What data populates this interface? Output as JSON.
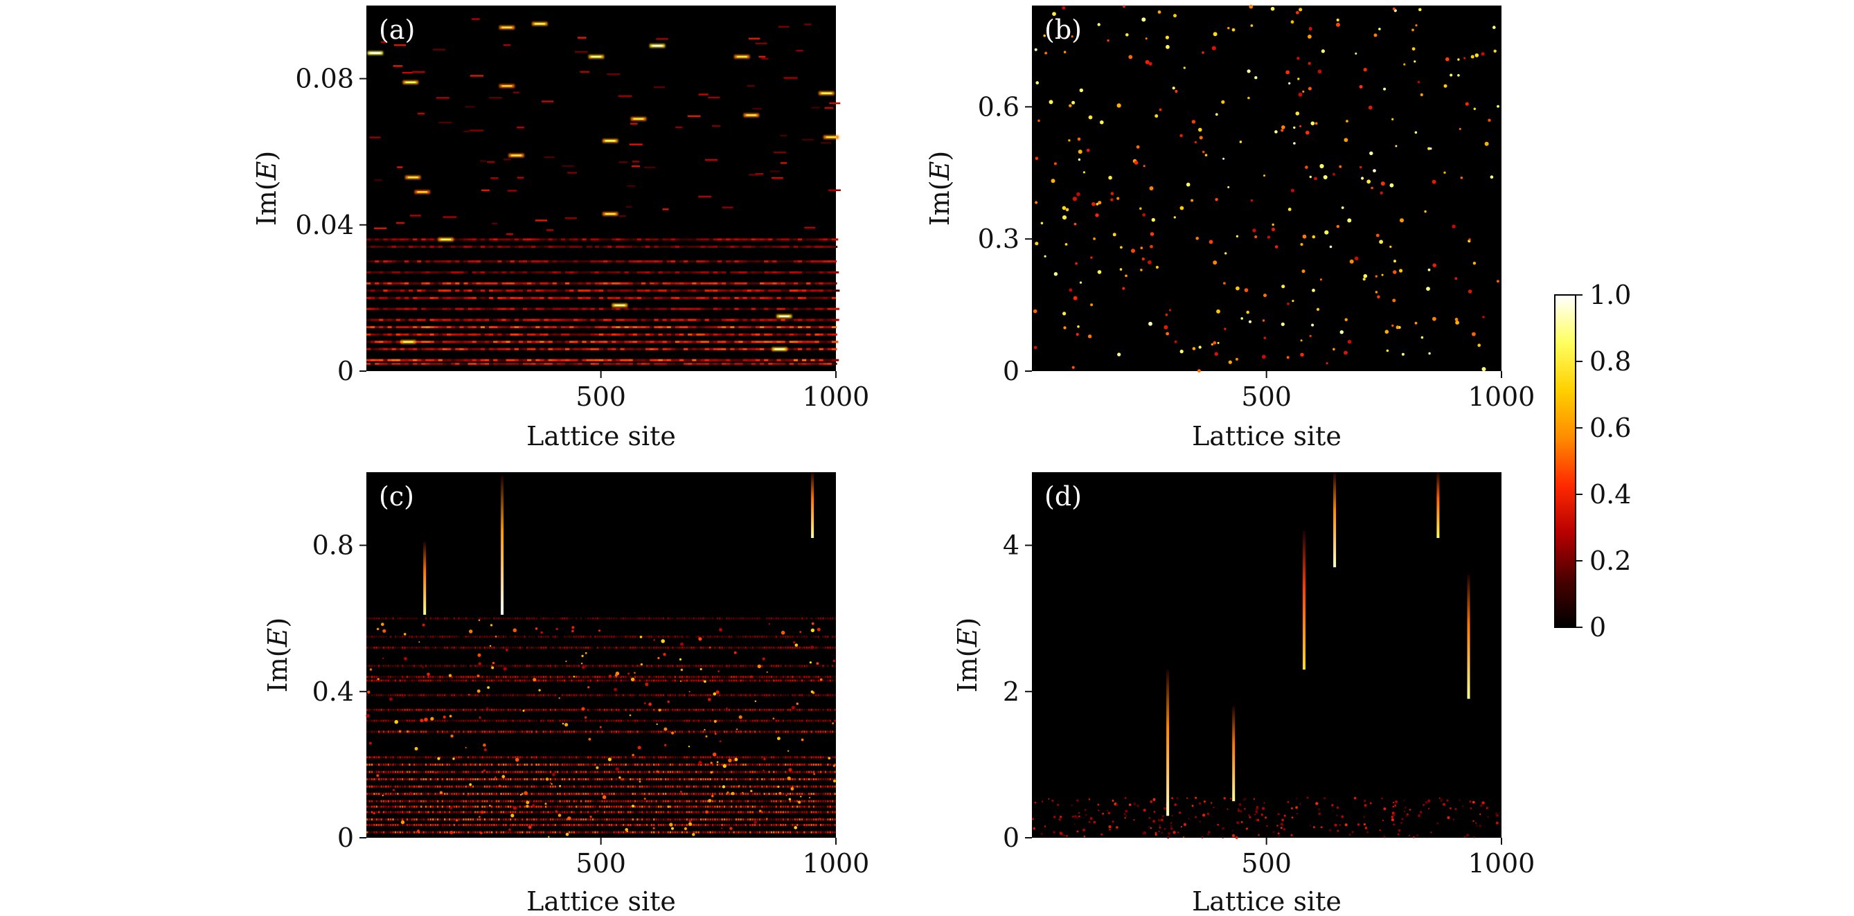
{
  "colors": {
    "background": "#000000",
    "colormap": [
      "#000000",
      "#4a0000",
      "#b80000",
      "#ff2a00",
      "#ff8c00",
      "#ffd000",
      "#ffff60",
      "#ffffff"
    ]
  },
  "chart_data": [
    {
      "type": "heatmap",
      "panel_label": "(a)",
      "xlabel": "Lattice site",
      "ylabel": "Im(E)",
      "xlim": [
        1,
        1000
      ],
      "ylim": [
        0,
        0.1
      ],
      "xticks": [
        500,
        1000
      ],
      "yticks": [
        0,
        0.04,
        0.08
      ],
      "ytick_labels": [
        "0",
        "0.04",
        "0.08"
      ],
      "xtick_labels": [
        "500",
        "1000"
      ],
      "pattern": "horizontal bands dense below Im(E)=0.037, isolated bright dashes above",
      "points": [
        {
          "x": 20,
          "y": 0.087,
          "v": 0.85
        },
        {
          "x": 95,
          "y": 0.079,
          "v": 0.6
        },
        {
          "x": 300,
          "y": 0.094,
          "v": 0.55
        },
        {
          "x": 370,
          "y": 0.095,
          "v": 0.6
        },
        {
          "x": 490,
          "y": 0.086,
          "v": 0.65
        },
        {
          "x": 620,
          "y": 0.089,
          "v": 0.75
        },
        {
          "x": 800,
          "y": 0.086,
          "v": 0.55
        },
        {
          "x": 980,
          "y": 0.076,
          "v": 0.6
        },
        {
          "x": 300,
          "y": 0.078,
          "v": 0.5
        },
        {
          "x": 580,
          "y": 0.069,
          "v": 0.55
        },
        {
          "x": 820,
          "y": 0.07,
          "v": 0.55
        },
        {
          "x": 520,
          "y": 0.063,
          "v": 0.6
        },
        {
          "x": 990,
          "y": 0.064,
          "v": 0.55
        },
        {
          "x": 320,
          "y": 0.059,
          "v": 0.55
        },
        {
          "x": 100,
          "y": 0.053,
          "v": 0.55
        },
        {
          "x": 120,
          "y": 0.049,
          "v": 0.5
        },
        {
          "x": 520,
          "y": 0.043,
          "v": 0.55
        },
        {
          "x": 170,
          "y": 0.036,
          "v": 0.6
        },
        {
          "x": 540,
          "y": 0.018,
          "v": 0.65
        },
        {
          "x": 890,
          "y": 0.015,
          "v": 0.7
        },
        {
          "x": 880,
          "y": 0.006,
          "v": 0.7
        },
        {
          "x": 90,
          "y": 0.008,
          "v": 0.6
        }
      ],
      "bands": [
        {
          "y": 0.036,
          "v": 0.3
        },
        {
          "y": 0.034,
          "v": 0.25
        },
        {
          "y": 0.03,
          "v": 0.3
        },
        {
          "y": 0.027,
          "v": 0.25
        },
        {
          "y": 0.024,
          "v": 0.4
        },
        {
          "y": 0.022,
          "v": 0.35
        },
        {
          "y": 0.02,
          "v": 0.35
        },
        {
          "y": 0.017,
          "v": 0.3
        },
        {
          "y": 0.014,
          "v": 0.35
        },
        {
          "y": 0.012,
          "v": 0.45
        },
        {
          "y": 0.01,
          "v": 0.4
        },
        {
          "y": 0.008,
          "v": 0.45
        },
        {
          "y": 0.006,
          "v": 0.4
        },
        {
          "y": 0.003,
          "v": 0.45
        },
        {
          "y": 0.002,
          "v": 0.35
        }
      ]
    },
    {
      "type": "heatmap",
      "panel_label": "(b)",
      "xlabel": "Lattice site",
      "ylabel": "Im(E)",
      "xlim": [
        1,
        1000
      ],
      "ylim": [
        0,
        0.83
      ],
      "xticks": [
        500,
        1000
      ],
      "yticks": [
        0,
        0.3,
        0.6
      ],
      "ytick_labels": [
        "0",
        "0.3",
        "0.6"
      ],
      "xtick_labels": [
        "500",
        "1000"
      ],
      "pattern": "sparse isolated bright dots scattered across the full range",
      "points": [],
      "bands": []
    },
    {
      "type": "heatmap",
      "panel_label": "(c)",
      "xlabel": "Lattice site",
      "ylabel": "Im(E)",
      "xlim": [
        1,
        1000
      ],
      "ylim": [
        0,
        1.0
      ],
      "xticks": [
        500,
        1000
      ],
      "yticks": [
        0,
        0.4,
        0.8
      ],
      "ytick_labels": [
        "0",
        "0.4",
        "0.8"
      ],
      "xtick_labels": [
        "500",
        "1000"
      ],
      "pattern": "dotted horizontal bands below Im(E)=0.6, three bright vertical streaks above",
      "streaks": [
        {
          "x": 125,
          "y0": 0.61,
          "y1": 0.81,
          "v": 0.9
        },
        {
          "x": 290,
          "y0": 0.61,
          "y1": 0.99,
          "v": 1.0
        },
        {
          "x": 950,
          "y0": 0.82,
          "y1": 1.0,
          "v": 0.9
        }
      ],
      "bands": [
        {
          "y": 0.6,
          "v": 0.2
        },
        {
          "y": 0.55,
          "v": 0.2
        },
        {
          "y": 0.52,
          "v": 0.25
        },
        {
          "y": 0.47,
          "v": 0.25
        },
        {
          "y": 0.44,
          "v": 0.3
        },
        {
          "y": 0.43,
          "v": 0.3
        },
        {
          "y": 0.39,
          "v": 0.25
        },
        {
          "y": 0.35,
          "v": 0.3
        },
        {
          "y": 0.32,
          "v": 0.25
        },
        {
          "y": 0.29,
          "v": 0.35
        },
        {
          "y": 0.22,
          "v": 0.3
        },
        {
          "y": 0.2,
          "v": 0.45
        },
        {
          "y": 0.18,
          "v": 0.4
        },
        {
          "y": 0.16,
          "v": 0.45
        },
        {
          "y": 0.14,
          "v": 0.4
        },
        {
          "y": 0.12,
          "v": 0.45
        },
        {
          "y": 0.1,
          "v": 0.4
        },
        {
          "y": 0.085,
          "v": 0.45
        },
        {
          "y": 0.07,
          "v": 0.4
        },
        {
          "y": 0.05,
          "v": 0.45
        },
        {
          "y": 0.035,
          "v": 0.4
        },
        {
          "y": 0.015,
          "v": 0.45
        }
      ]
    },
    {
      "type": "heatmap",
      "panel_label": "(d)",
      "xlabel": "Lattice site",
      "ylabel": "Im(E)",
      "xlim": [
        1,
        1000
      ],
      "ylim": [
        0,
        5.0
      ],
      "xticks": [
        500,
        1000
      ],
      "yticks": [
        0,
        2,
        4
      ],
      "ytick_labels": [
        "0",
        "2",
        "4"
      ],
      "xtick_labels": [
        "500",
        "1000"
      ],
      "pattern": "faint dots below Im(E)=0.5, thin bright vertical streaks at a few sites",
      "streaks": [
        {
          "x": 290,
          "y0": 0.3,
          "y1": 2.3,
          "v": 0.95
        },
        {
          "x": 430,
          "y0": 0.5,
          "y1": 1.8,
          "v": 0.9
        },
        {
          "x": 580,
          "y0": 2.3,
          "y1": 4.2,
          "v": 0.75
        },
        {
          "x": 645,
          "y0": 3.7,
          "y1": 5.0,
          "v": 0.95
        },
        {
          "x": 865,
          "y0": 4.1,
          "y1": 5.0,
          "v": 0.85
        },
        {
          "x": 930,
          "y0": 1.9,
          "y1": 3.6,
          "v": 0.9
        }
      ],
      "bands": []
    }
  ],
  "colorbar": {
    "ticks": [
      0,
      0.2,
      0.4,
      0.6,
      0.8,
      1.0
    ],
    "tick_labels": [
      "0",
      "0.2",
      "0.4",
      "0.6",
      "0.8",
      "1.0"
    ],
    "range": [
      0,
      1.0
    ]
  }
}
